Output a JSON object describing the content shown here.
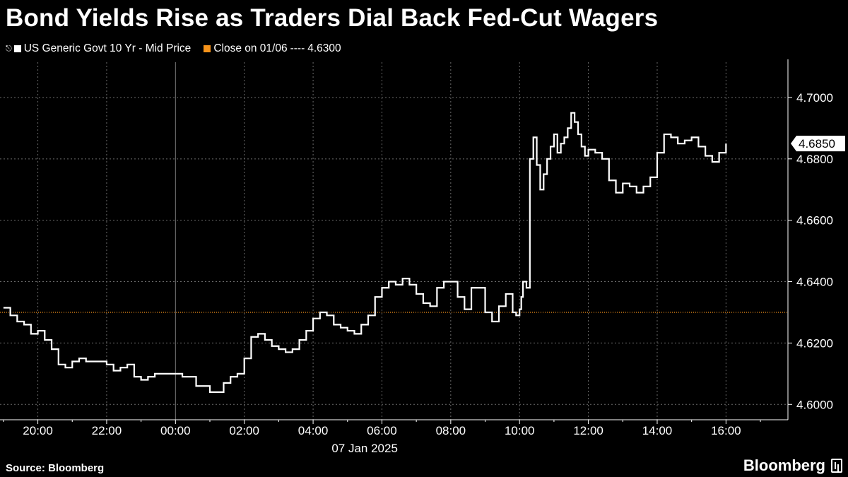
{
  "title": "Bond Yields Rise as Traders Dial Back Fed-Cut Wagers",
  "legend": {
    "series_label": "US Generic Govt 10 Yr - Mid Price",
    "close_label": "Close on 01/06",
    "close_dashes": "----",
    "close_value": "4.6300"
  },
  "source": "Source: Bloomberg",
  "brand": "Bloomberg",
  "colors": {
    "series": "#ffffff",
    "close_line": "#f7931a",
    "grid": "#6b6b6b",
    "background": "#000000"
  },
  "chart_data": {
    "type": "line",
    "x_tick_labels": [
      "20:00",
      "22:00",
      "00:00",
      "02:00",
      "04:00",
      "06:00",
      "08:00",
      "10:00",
      "12:00",
      "14:00",
      "16:00"
    ],
    "x_ticks_hours": [
      20,
      22,
      24,
      26,
      28,
      30,
      32,
      34,
      36,
      38,
      40
    ],
    "x_range_hours": [
      18.9,
      41.8
    ],
    "date_label": "07 Jan 2025",
    "y_tick_labels": [
      "4.6000",
      "4.6200",
      "4.6400",
      "4.6600",
      "4.6800",
      "4.7000"
    ],
    "y_ticks": [
      4.6,
      4.62,
      4.64,
      4.66,
      4.68,
      4.7
    ],
    "ylim": [
      4.595,
      4.7115
    ],
    "last_value_label": "4.6850",
    "last_value": 4.685,
    "reference_line": {
      "label": "Close on 01/06",
      "value": 4.63
    },
    "grid": true,
    "series": [
      {
        "name": "US Generic Govt 10 Yr - Mid Price",
        "x": [
          19.0,
          19.2,
          19.4,
          19.6,
          19.8,
          20.0,
          20.2,
          20.4,
          20.6,
          20.8,
          21.0,
          21.2,
          21.4,
          21.6,
          21.8,
          22.0,
          22.2,
          22.4,
          22.6,
          22.8,
          23.0,
          23.2,
          23.4,
          23.6,
          23.8,
          24.0,
          24.2,
          24.6,
          25.0,
          25.4,
          25.6,
          25.8,
          26.0,
          26.2,
          26.4,
          26.6,
          26.8,
          27.0,
          27.2,
          27.4,
          27.6,
          27.8,
          28.0,
          28.2,
          28.4,
          28.6,
          28.8,
          29.0,
          29.2,
          29.4,
          29.6,
          29.8,
          30.0,
          30.2,
          30.4,
          30.6,
          30.8,
          31.0,
          31.2,
          31.4,
          31.6,
          31.8,
          32.0,
          32.2,
          32.4,
          32.6,
          32.8,
          33.0,
          33.2,
          33.4,
          33.6,
          33.8,
          33.9,
          34.0,
          34.05,
          34.1,
          34.2,
          34.3,
          34.4,
          34.5,
          34.6,
          34.7,
          34.8,
          34.9,
          35.0,
          35.1,
          35.2,
          35.3,
          35.4,
          35.5,
          35.6,
          35.7,
          35.8,
          35.9,
          36.0,
          36.2,
          36.4,
          36.6,
          36.8,
          37.0,
          37.2,
          37.4,
          37.6,
          37.8,
          38.0,
          38.2,
          38.4,
          38.6,
          38.8,
          39.0,
          39.2,
          39.4,
          39.6,
          39.8,
          40.0
        ],
        "y": [
          4.6315,
          4.629,
          4.627,
          4.626,
          4.623,
          4.624,
          4.621,
          4.618,
          4.613,
          4.612,
          4.614,
          4.615,
          4.614,
          4.614,
          4.614,
          4.613,
          4.611,
          4.612,
          4.613,
          4.609,
          4.608,
          4.609,
          4.61,
          4.61,
          4.61,
          4.61,
          4.609,
          4.606,
          4.604,
          4.607,
          4.609,
          4.61,
          4.615,
          4.622,
          4.623,
          4.621,
          4.619,
          4.618,
          4.617,
          4.618,
          4.621,
          4.624,
          4.628,
          4.63,
          4.629,
          4.626,
          4.625,
          4.624,
          4.623,
          4.626,
          4.629,
          4.635,
          4.638,
          4.64,
          4.639,
          4.641,
          4.639,
          4.636,
          4.633,
          4.632,
          4.638,
          4.64,
          4.64,
          4.635,
          4.631,
          4.638,
          4.638,
          4.63,
          4.627,
          4.632,
          4.636,
          4.63,
          4.629,
          4.631,
          4.635,
          4.64,
          4.638,
          4.68,
          4.687,
          4.678,
          4.67,
          4.675,
          4.68,
          4.684,
          4.688,
          4.682,
          4.685,
          4.687,
          4.69,
          4.695,
          4.692,
          4.688,
          4.684,
          4.681,
          4.683,
          4.682,
          4.68,
          4.673,
          4.669,
          4.672,
          4.671,
          4.669,
          4.671,
          4.674,
          4.682,
          4.688,
          4.687,
          4.685,
          4.686,
          4.687,
          4.684,
          4.681,
          4.679,
          4.682,
          4.685
        ]
      }
    ]
  }
}
